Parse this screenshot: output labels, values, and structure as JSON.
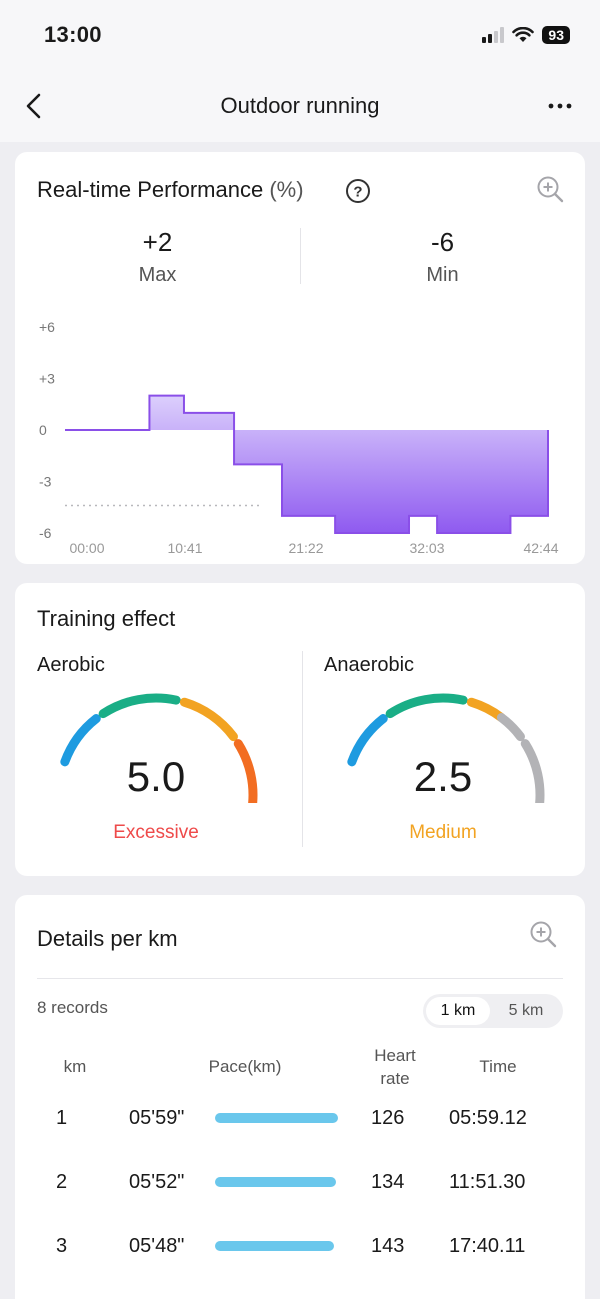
{
  "status": {
    "time": "13:00",
    "battery": "93"
  },
  "nav": {
    "title": "Outdoor running"
  },
  "performance": {
    "title": "Real-time Performance",
    "unit": "(%)",
    "max_value": "+2",
    "max_label": "Max",
    "min_value": "-6",
    "min_label": "Min",
    "chart_data": {
      "type": "area",
      "x_tick_labels": [
        "00:00",
        "10:41",
        "21:22",
        "32:03",
        "42:44"
      ],
      "y_tick_labels": [
        "+6",
        "+3",
        "0",
        "-3",
        "-6"
      ],
      "ylim": [
        -6,
        6
      ],
      "x": [
        "00:00",
        "07:52",
        "11:05",
        "15:45",
        "20:13",
        "25:10",
        "32:03",
        "34:40",
        "41:30",
        "45:00"
      ],
      "values": [
        0,
        2,
        1,
        -2,
        -5,
        -6,
        -5,
        -6,
        -5,
        0
      ]
    }
  },
  "training": {
    "title": "Training effect",
    "aerobic": {
      "label": "Aerobic",
      "value": "5.0",
      "status": "Excessive",
      "status_color": "#ee4a4a",
      "level": 5.0
    },
    "anaerobic": {
      "label": "Anaerobic",
      "value": "2.5",
      "status": "Medium",
      "status_color": "#f2a322",
      "level": 2.5
    },
    "colors": [
      "#1e9be0",
      "#1aae86",
      "#f2a322",
      "#f26d22",
      "#ee4a4a"
    ]
  },
  "details": {
    "title": "Details per km",
    "records": "8 records",
    "seg_1km": "1 km",
    "seg_5km": "5 km",
    "headers": {
      "km": "km",
      "pace": "Pace(km)",
      "hr_line1": "Heart",
      "hr_line2": "rate",
      "time": "Time"
    },
    "rows": [
      {
        "km": "1",
        "pace": "05'59\"",
        "pace_fraction": 1.0,
        "hr": "126",
        "time": "05:59.12"
      },
      {
        "km": "2",
        "pace": "05'52\"",
        "pace_fraction": 0.98,
        "hr": "134",
        "time": "11:51.30"
      },
      {
        "km": "3",
        "pace": "05'48\"",
        "pace_fraction": 0.97,
        "hr": "143",
        "time": "17:40.11"
      }
    ]
  }
}
